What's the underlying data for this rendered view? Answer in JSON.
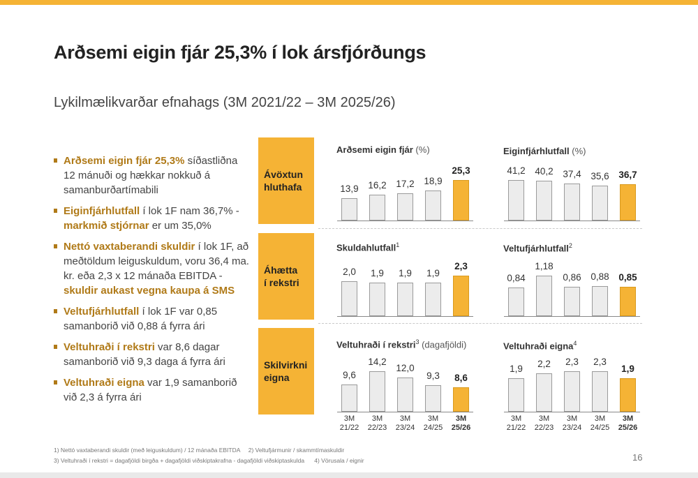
{
  "title": "Arðsemi eigin fjár 25,3% í lok ársfjórðungs",
  "subtitle": "Lykilmælikvarðar efnahags (3M 2021/22 – 3M 2025/26)",
  "bullets": [
    {
      "highlight": "Arðsemi eigin fjár 25,3%",
      "text": " síðastliðna 12 mánuði og hækkar nokkuð á samanburðartímabili"
    },
    {
      "highlight": "Eiginfjárhlutfall",
      "text": " í lok 1F nam 36,7% - ",
      "highlight2": "markmið stjórnar",
      "text2": " er um 35,0%"
    },
    {
      "highlight": "Nettó vaxtaberandi skuldir",
      "text": " í lok 1F, að meðtöldum leiguskuldum, voru 36,4 ma. kr. eða 2,3 x 12 mánaða EBITDA - ",
      "highlight2": "skuldir aukast vegna kaupa á SMS",
      "text2": ""
    },
    {
      "highlight": "Veltufjárhlutfall",
      "text": " í lok 1F var 0,85 samanborið við 0,88 á fyrra ári"
    },
    {
      "highlight": "Veltuhraði í rekstri",
      "text": " var 8,6 dagar samanborið við 9,3 daga á fyrra ári"
    },
    {
      "highlight": "Veltuhraði eigna",
      "text": " var 1,9 samanborið við 2,3 á fyrra ári"
    }
  ],
  "row_labels": [
    "Ávöxtun\nhluthafa",
    "Áhætta\ní rekstri",
    "Skilvirkni\neigna"
  ],
  "x_categories": [
    "3M\n21/22",
    "3M\n22/23",
    "3M\n23/24",
    "3M\n24/25",
    "3M\n25/26"
  ],
  "chart_data": [
    {
      "type": "bar",
      "title": "Arðsemi eigin fjár",
      "unit": "(%)",
      "sup": "",
      "categories": [
        "3M 21/22",
        "3M 22/23",
        "3M 23/24",
        "3M 24/25",
        "3M 25/26"
      ],
      "values": [
        13.9,
        16.2,
        17.2,
        18.9,
        25.3
      ],
      "labels": [
        "13,9",
        "16,2",
        "17,2",
        "18,9",
        "25,3"
      ],
      "highlight_index": 4
    },
    {
      "type": "bar",
      "title": "Eiginfjárhlutfall",
      "unit": "(%)",
      "sup": "",
      "categories": [
        "3M 21/22",
        "3M 22/23",
        "3M 23/24",
        "3M 24/25",
        "3M 25/26"
      ],
      "values": [
        41.2,
        40.2,
        37.4,
        35.6,
        36.7
      ],
      "labels": [
        "41,2",
        "40,2",
        "37,4",
        "35,6",
        "36,7"
      ],
      "highlight_index": 4
    },
    {
      "type": "bar",
      "title": "Skuldahlutfall",
      "unit": "",
      "sup": "1",
      "categories": [
        "3M 21/22",
        "3M 22/23",
        "3M 23/24",
        "3M 24/25",
        "3M 25/26"
      ],
      "values": [
        2.0,
        1.9,
        1.9,
        1.9,
        2.3
      ],
      "labels": [
        "2,0",
        "1,9",
        "1,9",
        "1,9",
        "2,3"
      ],
      "highlight_index": 4
    },
    {
      "type": "bar",
      "title": "Veltufjárhlutfall",
      "unit": "",
      "sup": "2",
      "categories": [
        "3M 21/22",
        "3M 22/23",
        "3M 23/24",
        "3M 24/25",
        "3M 25/26"
      ],
      "values": [
        0.84,
        1.18,
        0.86,
        0.88,
        0.85
      ],
      "labels": [
        "0,84",
        "1,18",
        "0,86",
        "0,88",
        "0,85"
      ],
      "highlight_index": 4
    },
    {
      "type": "bar",
      "title": "Veltuhraði í rekstri",
      "unit": "(dagafjöldi)",
      "sup": "3",
      "categories": [
        "3M 21/22",
        "3M 22/23",
        "3M 23/24",
        "3M 24/25",
        "3M 25/26"
      ],
      "values": [
        9.6,
        14.2,
        12.0,
        9.3,
        8.6
      ],
      "labels": [
        "9,6",
        "14,2",
        "12,0",
        "9,3",
        "8,6"
      ],
      "highlight_index": 4
    },
    {
      "type": "bar",
      "title": "Veltuhraði eigna",
      "unit": "",
      "sup": "4",
      "categories": [
        "3M 21/22",
        "3M 22/23",
        "3M 23/24",
        "3M 24/25",
        "3M 25/26"
      ],
      "values": [
        1.9,
        2.2,
        2.3,
        2.3,
        1.9
      ],
      "labels": [
        "1,9",
        "2,2",
        "2,3",
        "2,3",
        "1,9"
      ],
      "highlight_index": 4
    }
  ],
  "footnotes": [
    "1) Nettó vaxtaberandi skuldir (með leiguskuldum) / 12 mánaða EBITDA     2) Veltufjármunir / skammtímaskuldir",
    "3) Veltuhraði í rekstri = dagafjöldi birgða + dagafjöldi viðskiptakrafna - dagafjöldi viðskiptaskulda      4) Vörusala / eignir"
  ],
  "page_number": "16",
  "colors": {
    "accent": "#F5B335",
    "highlight_text": "#B07A18",
    "bar_fill": "#ececec",
    "bar_border": "#9a9a9a"
  }
}
